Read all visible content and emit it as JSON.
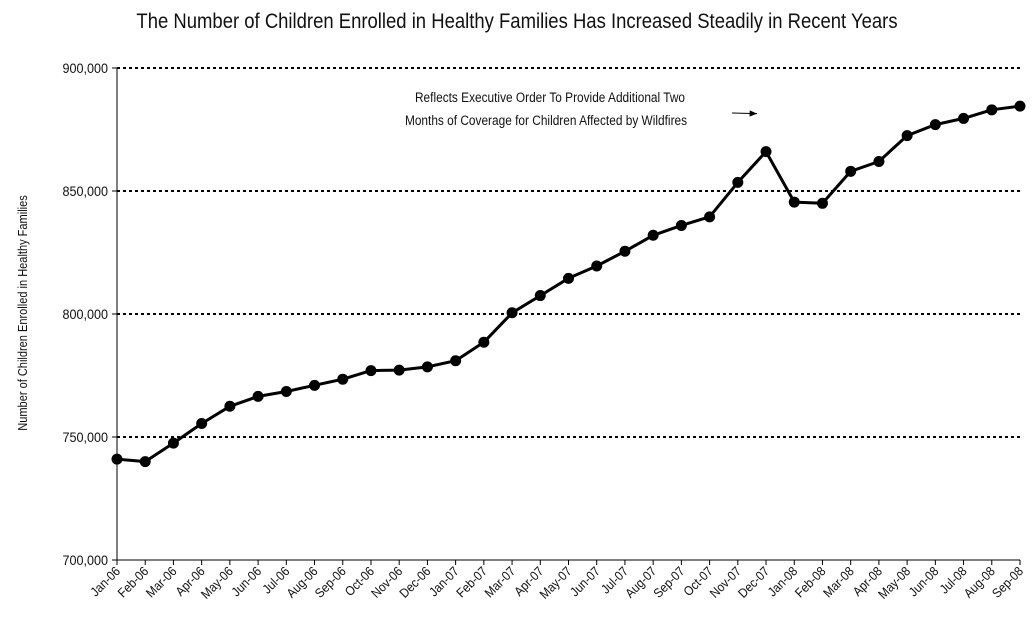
{
  "chart_data": {
    "type": "line",
    "title": "The Number of Children Enrolled in Healthy Families Has Increased Steadily in Recent Years",
    "xlabel": "",
    "ylabel": "Number of Children Enrolled in Healthy Families",
    "ylim": [
      700000,
      900000
    ],
    "yticks": [
      700000,
      750000,
      800000,
      850000,
      900000
    ],
    "ytick_labels": [
      "700,000",
      "750,000",
      "800,000",
      "850,000",
      "900,000"
    ],
    "grid": "horizontal dashed",
    "categories": [
      "Jan-06",
      "Feb-06",
      "Mar-06",
      "Apr-06",
      "May-06",
      "Jun-06",
      "Jul-06",
      "Aug-06",
      "Sep-06",
      "Oct-06",
      "Nov-06",
      "Dec-06",
      "Jan-07",
      "Feb-07",
      "Mar-07",
      "Apr-07",
      "May-07",
      "Jun-07",
      "Jul-07",
      "Aug-07",
      "Sep-07",
      "Oct-07",
      "Nov-07",
      "Dec-07",
      "Jan-08",
      "Feb-08",
      "Mar-08",
      "Apr-08",
      "May-08",
      "Jun-08",
      "Jul-08",
      "Aug-08",
      "Sep-08"
    ],
    "series": [
      {
        "values": [
          741000,
          740000,
          747500,
          755500,
          762500,
          766500,
          768500,
          771000,
          773500,
          777000,
          777200,
          778500,
          781000,
          788500,
          800500,
          807500,
          814500,
          819500,
          825500,
          832000,
          836000,
          839500,
          853500,
          866000,
          845500,
          845000,
          858000,
          862000,
          872500,
          877000,
          879500,
          883000,
          884500
        ]
      }
    ],
    "annotation": {
      "lines": [
        "Reflects Executive Order To Provide Additional Two",
        "Months of Coverage for Children Affected by Wildfires"
      ],
      "target_category": "Dec-07"
    },
    "colors": {
      "line": "#000000",
      "grid": "#000000"
    }
  }
}
